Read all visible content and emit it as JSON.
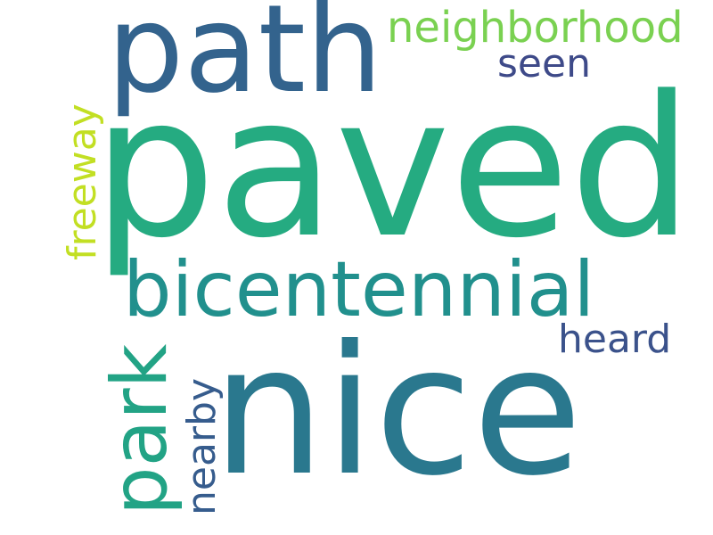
{
  "words": [
    {
      "text": "paved",
      "color": "#25ab81"
    },
    {
      "text": "path",
      "color": "#33638d"
    },
    {
      "text": "nice",
      "color": "#2a788e"
    },
    {
      "text": "bicentennial",
      "color": "#21908d"
    },
    {
      "text": "neighborhood",
      "color": "#7ad151"
    },
    {
      "text": "seen",
      "color": "#3e4a89"
    },
    {
      "text": "heard",
      "color": "#3b528b"
    },
    {
      "text": "park",
      "color": "#22a385"
    },
    {
      "text": "freeway",
      "color": "#c2df23"
    },
    {
      "text": "nearby",
      "color": "#365c8d"
    }
  ]
}
